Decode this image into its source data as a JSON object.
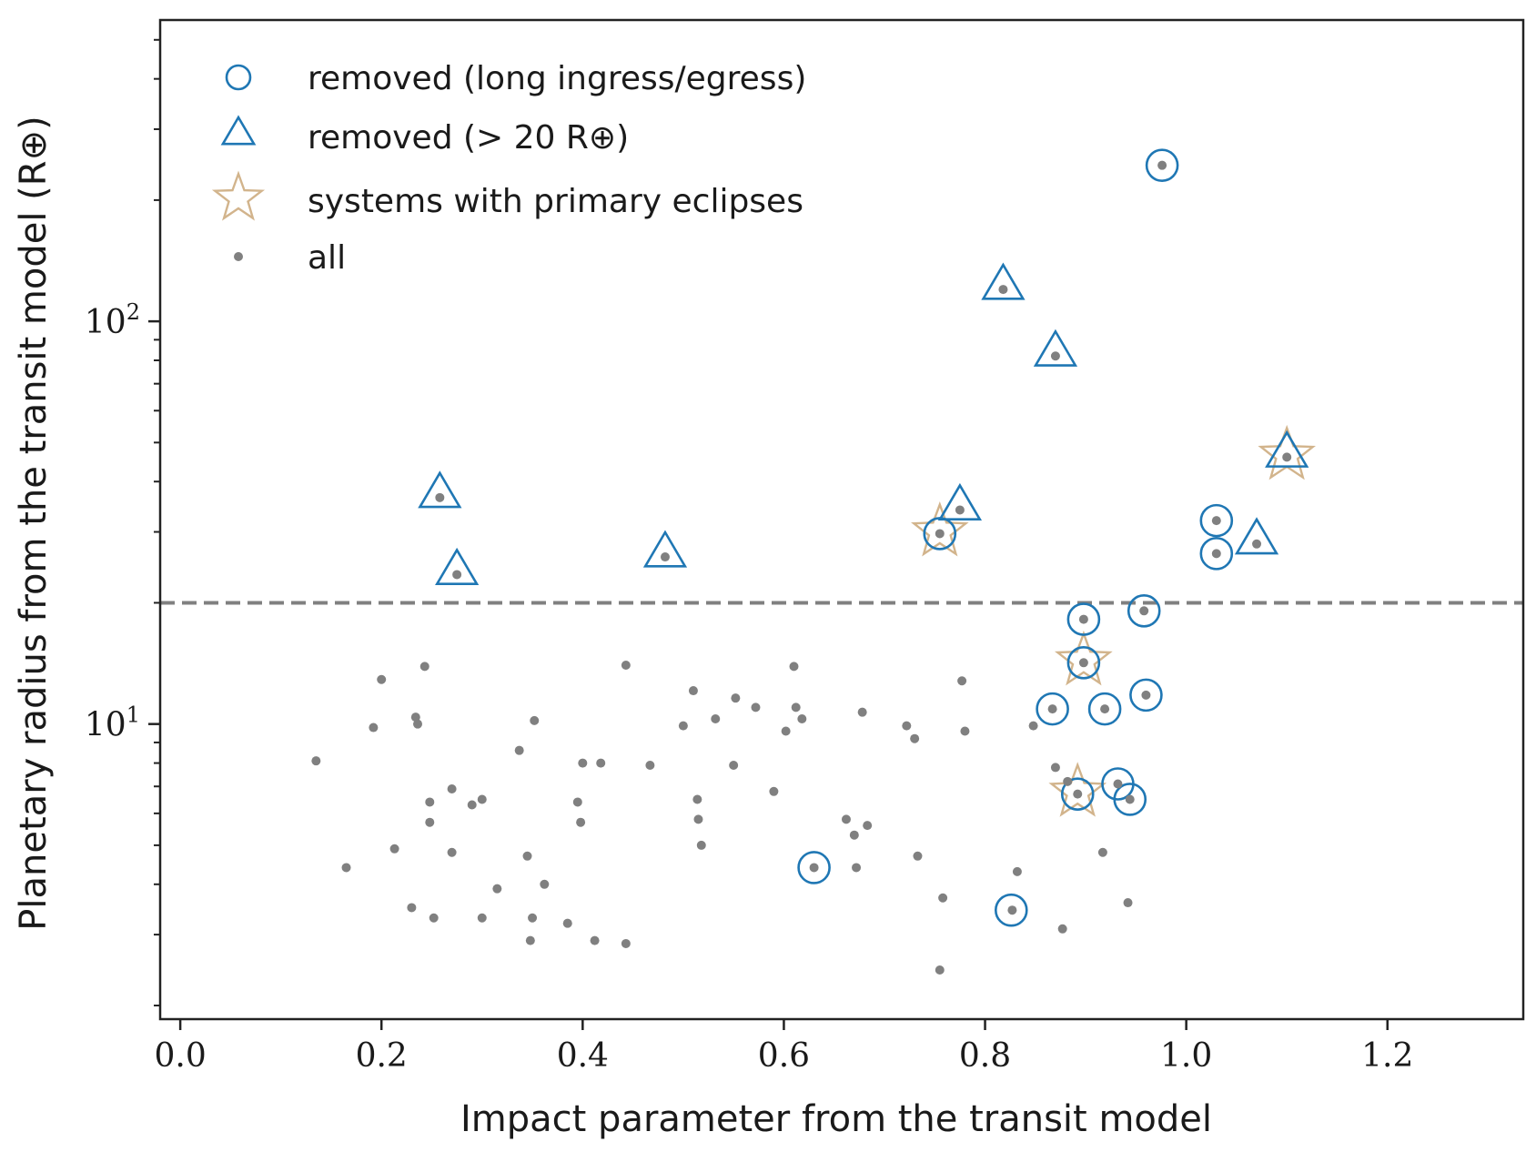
{
  "chart_data": {
    "type": "scatter",
    "xlabel": "Impact parameter from the transit model",
    "ylabel": "Planetary radius from the transit model (R⊕)",
    "x_scale": "linear",
    "y_scale": "log",
    "xlim": [
      -0.02,
      1.335
    ],
    "ylim": [
      1.85,
      560
    ],
    "x_ticks": [
      0.0,
      0.2,
      0.4,
      0.6,
      0.8,
      1.0,
      1.2
    ],
    "x_tick_labels": [
      "0.0",
      "0.2",
      "0.4",
      "0.6",
      "0.8",
      "1.0",
      "1.2"
    ],
    "y_major_ticks": [
      10,
      100
    ],
    "y_tick_labels": [
      {
        "base": "10",
        "exp": "1"
      },
      {
        "base": "10",
        "exp": "2"
      }
    ],
    "threshold": {
      "y": 20,
      "style": "dashed",
      "color": "#808080"
    },
    "legend": {
      "position": "top-left",
      "entries": [
        {
          "label": "removed (long ingress/egress)",
          "marker": "circle",
          "color": "#1f77b4"
        },
        {
          "label": "removed (> 20 R⊕)",
          "marker": "triangle",
          "color": "#1f77b4"
        },
        {
          "label": "systems with primary eclipses",
          "marker": "star",
          "color": "#d2b48c"
        },
        {
          "label": "all",
          "marker": "dot",
          "color": "#808080"
        }
      ]
    },
    "series": [
      {
        "name": "all",
        "marker": "dot",
        "color": "#808080",
        "points": [
          [
            0.135,
            8.1
          ],
          [
            0.165,
            4.4
          ],
          [
            0.192,
            9.8
          ],
          [
            0.2,
            12.9
          ],
          [
            0.213,
            4.9
          ],
          [
            0.23,
            3.5
          ],
          [
            0.234,
            10.4
          ],
          [
            0.236,
            10.0
          ],
          [
            0.243,
            13.9
          ],
          [
            0.248,
            6.4
          ],
          [
            0.248,
            5.7
          ],
          [
            0.252,
            3.3
          ],
          [
            0.27,
            6.9
          ],
          [
            0.27,
            4.8
          ],
          [
            0.29,
            6.3
          ],
          [
            0.3,
            6.5
          ],
          [
            0.3,
            3.3
          ],
          [
            0.315,
            3.9
          ],
          [
            0.337,
            8.6
          ],
          [
            0.345,
            4.7
          ],
          [
            0.348,
            2.9
          ],
          [
            0.35,
            3.3
          ],
          [
            0.352,
            10.2
          ],
          [
            0.362,
            4.0
          ],
          [
            0.385,
            3.2
          ],
          [
            0.395,
            6.4
          ],
          [
            0.398,
            5.7
          ],
          [
            0.4,
            8.0
          ],
          [
            0.412,
            2.9
          ],
          [
            0.418,
            8.0
          ],
          [
            0.443,
            14.0
          ],
          [
            0.443,
            2.85
          ],
          [
            0.467,
            7.9
          ],
          [
            0.5,
            9.9
          ],
          [
            0.51,
            12.1
          ],
          [
            0.514,
            6.5
          ],
          [
            0.515,
            5.8
          ],
          [
            0.518,
            5.0
          ],
          [
            0.532,
            10.3
          ],
          [
            0.55,
            7.9
          ],
          [
            0.552,
            11.6
          ],
          [
            0.572,
            11.0
          ],
          [
            0.59,
            6.8
          ],
          [
            0.602,
            9.6
          ],
          [
            0.61,
            13.9
          ],
          [
            0.612,
            11.0
          ],
          [
            0.618,
            10.3
          ],
          [
            0.662,
            5.8
          ],
          [
            0.67,
            5.3
          ],
          [
            0.672,
            4.4
          ],
          [
            0.678,
            10.7
          ],
          [
            0.683,
            5.6
          ],
          [
            0.722,
            9.9
          ],
          [
            0.73,
            9.2
          ],
          [
            0.733,
            4.7
          ],
          [
            0.755,
            2.45
          ],
          [
            0.758,
            3.7
          ],
          [
            0.777,
            12.8
          ],
          [
            0.78,
            9.6
          ],
          [
            0.827,
            3.45
          ],
          [
            0.832,
            4.3
          ],
          [
            0.848,
            9.9
          ],
          [
            0.87,
            7.8
          ],
          [
            0.877,
            3.1
          ],
          [
            0.882,
            7.2
          ],
          [
            0.917,
            4.8
          ],
          [
            0.942,
            3.6
          ],
          [
            0.63,
            4.4
          ],
          [
            0.892,
            6.7
          ],
          [
            0.932,
            7.1
          ],
          [
            0.944,
            6.5
          ],
          [
            0.867,
            10.9
          ],
          [
            0.919,
            10.9
          ],
          [
            0.898,
            14.2
          ],
          [
            0.96,
            11.8
          ],
          [
            0.898,
            18.2
          ],
          [
            0.958,
            19.1
          ],
          [
            0.755,
            29.7
          ],
          [
            0.976,
            244
          ],
          [
            0.818,
            120
          ],
          [
            0.87,
            82
          ],
          [
            0.258,
            36.5
          ],
          [
            0.275,
            23.5
          ],
          [
            0.482,
            26.0
          ],
          [
            0.775,
            34.0
          ],
          [
            1.03,
            32.0
          ],
          [
            1.03,
            26.5
          ],
          [
            1.07,
            28.0
          ],
          [
            1.1,
            46.0
          ]
        ]
      },
      {
        "name": "removed (long ingress/egress)",
        "marker": "circle",
        "color": "#1f77b4",
        "points": [
          [
            0.63,
            4.4
          ],
          [
            0.826,
            3.45
          ],
          [
            0.892,
            6.7
          ],
          [
            0.932,
            7.1
          ],
          [
            0.944,
            6.5
          ],
          [
            0.867,
            10.9
          ],
          [
            0.919,
            10.9
          ],
          [
            0.898,
            14.2
          ],
          [
            0.96,
            11.8
          ],
          [
            0.898,
            18.2
          ],
          [
            0.958,
            19.1
          ],
          [
            0.755,
            29.7
          ],
          [
            0.976,
            244
          ],
          [
            1.03,
            32.0
          ],
          [
            1.03,
            26.5
          ]
        ]
      },
      {
        "name": "removed (> 20 R⊕)",
        "marker": "triangle",
        "color": "#1f77b4",
        "points": [
          [
            0.258,
            36.5
          ],
          [
            0.275,
            23.5
          ],
          [
            0.482,
            26.0
          ],
          [
            0.775,
            34.0
          ],
          [
            0.818,
            120
          ],
          [
            0.87,
            82
          ],
          [
            1.07,
            28.0
          ],
          [
            1.1,
            46.0
          ]
        ]
      },
      {
        "name": "systems with primary eclipses",
        "marker": "star",
        "color": "#d2b48c",
        "points": [
          [
            0.755,
            29.7
          ],
          [
            0.898,
            14.2
          ],
          [
            0.892,
            6.7
          ],
          [
            1.1,
            46.0
          ]
        ]
      }
    ]
  }
}
